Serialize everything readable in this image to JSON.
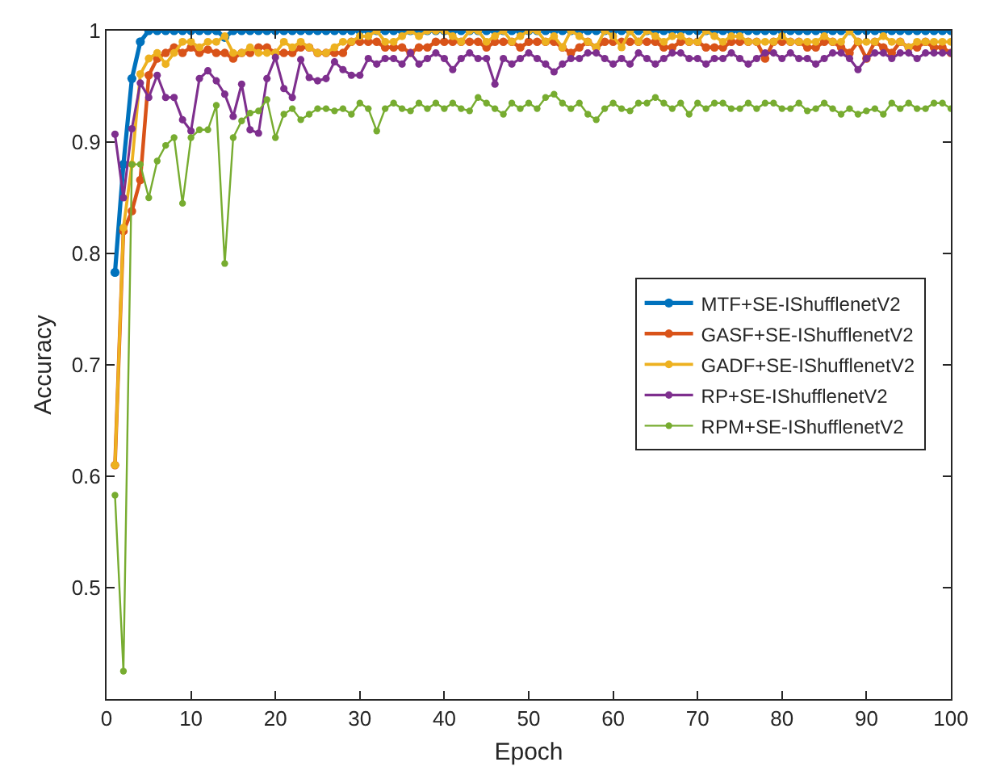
{
  "chart_data": {
    "type": "line",
    "xlabel": "Epoch",
    "ylabel": "Accuracy",
    "xlim": [
      0,
      100
    ],
    "xticks": [
      0,
      10,
      20,
      30,
      40,
      50,
      60,
      70,
      80,
      90,
      100
    ],
    "ylim": [
      0.4,
      1
    ],
    "yticks": [
      0.5,
      0.6,
      0.7,
      0.8,
      0.9,
      1
    ],
    "grid": false,
    "legend": "right",
    "marker": "circle",
    "line_style": "solid",
    "x": [
      1,
      2,
      3,
      4,
      5,
      6,
      7,
      8,
      9,
      10,
      11,
      12,
      13,
      14,
      15,
      16,
      17,
      18,
      19,
      20,
      21,
      22,
      23,
      24,
      25,
      26,
      27,
      28,
      29,
      30,
      31,
      32,
      33,
      34,
      35,
      36,
      37,
      38,
      39,
      40,
      41,
      42,
      43,
      44,
      45,
      46,
      47,
      48,
      49,
      50,
      51,
      52,
      53,
      54,
      55,
      56,
      57,
      58,
      59,
      60,
      61,
      62,
      63,
      64,
      65,
      66,
      67,
      68,
      69,
      70,
      71,
      72,
      73,
      74,
      75,
      76,
      77,
      78,
      79,
      80,
      81,
      82,
      83,
      84,
      85,
      86,
      87,
      88,
      89,
      90,
      91,
      92,
      93,
      94,
      95,
      96,
      97,
      98,
      99,
      100
    ],
    "series": [
      {
        "name": "MTF+SE-IShufflenetV2",
        "color": "#0072bd",
        "values": [
          0.783,
          0.88,
          0.957,
          0.99,
          1,
          1,
          1,
          1,
          1,
          1,
          1,
          1,
          1,
          0.994,
          1,
          1,
          1,
          1,
          1,
          1,
          1,
          1,
          1,
          1,
          1,
          1,
          1,
          1,
          1,
          1,
          1,
          1,
          1,
          1,
          1,
          1,
          1,
          1,
          1,
          1,
          1,
          1,
          1,
          1,
          1,
          1,
          1,
          1,
          1,
          1,
          1,
          1,
          1,
          1,
          1,
          1,
          1,
          1,
          1,
          1,
          1,
          1,
          1,
          1,
          1,
          1,
          1,
          1,
          1,
          1,
          1,
          1,
          1,
          1,
          1,
          1,
          1,
          1,
          1,
          1,
          1,
          1,
          1,
          1,
          1,
          1,
          1,
          1,
          1,
          1,
          1,
          1,
          1,
          1,
          1,
          1,
          1,
          1,
          1,
          1
        ]
      },
      {
        "name": "GASF+SE-IShufflenetV2",
        "color": "#d95319",
        "values": [
          0.61,
          0.82,
          0.838,
          0.866,
          0.96,
          0.975,
          0.98,
          0.985,
          0.98,
          0.985,
          0.98,
          0.983,
          0.98,
          0.98,
          0.975,
          0.98,
          0.98,
          0.985,
          0.985,
          0.98,
          0.98,
          0.98,
          0.985,
          0.985,
          0.98,
          0.98,
          0.98,
          0.98,
          0.99,
          0.99,
          0.99,
          0.99,
          0.985,
          0.985,
          0.985,
          0.98,
          0.985,
          0.985,
          0.99,
          0.99,
          0.99,
          0.99,
          0.99,
          0.99,
          0.985,
          0.99,
          0.99,
          0.99,
          0.985,
          0.99,
          0.99,
          0.99,
          0.99,
          0.985,
          0.98,
          0.985,
          0.99,
          0.985,
          0.99,
          0.99,
          0.99,
          0.99,
          0.99,
          0.99,
          0.99,
          0.985,
          0.985,
          0.99,
          0.99,
          0.99,
          0.985,
          0.985,
          0.985,
          0.99,
          0.99,
          0.99,
          0.99,
          0.975,
          0.99,
          0.99,
          0.99,
          0.99,
          0.985,
          0.985,
          0.99,
          0.99,
          0.985,
          0.98,
          0.99,
          0.975,
          0.99,
          0.985,
          0.98,
          0.99,
          0.985,
          0.985,
          0.99,
          0.985,
          0.985,
          0.98
        ]
      },
      {
        "name": "GADF+SE-IShufflenetV2",
        "color": "#edb120",
        "values": [
          0.61,
          0.823,
          0.88,
          0.961,
          0.975,
          0.98,
          0.97,
          0.98,
          0.99,
          0.99,
          0.985,
          0.99,
          0.99,
          0.995,
          0.98,
          0.98,
          0.985,
          0.98,
          0.98,
          0.98,
          0.99,
          0.985,
          0.99,
          0.985,
          0.98,
          0.98,
          0.985,
          0.99,
          0.99,
          0.995,
          0.995,
          1,
          0.99,
          0.99,
          0.995,
          1,
          0.995,
          1,
          1,
          1,
          0.995,
          0.99,
          1,
          1,
          0.99,
          0.995,
          1,
          0.99,
          0.995,
          1,
          1,
          0.99,
          0.995,
          0.985,
          1,
          0.995,
          0.99,
          0.985,
          1,
          0.995,
          0.985,
          1,
          0.99,
          1,
          0.995,
          0.99,
          0.995,
          0.995,
          0.99,
          0.99,
          1,
          0.995,
          0.99,
          0.995,
          0.995,
          0.99,
          0.99,
          0.99,
          0.99,
          0.995,
          0.99,
          0.99,
          0.99,
          0.99,
          0.995,
          0.99,
          0.99,
          1,
          0.99,
          0.99,
          0.99,
          0.995,
          0.99,
          0.99,
          0.985,
          0.99,
          0.99,
          0.99,
          0.99,
          0.99
        ]
      },
      {
        "name": "RP+SE-IShufflenetV2",
        "color": "#7e2f8e",
        "values": [
          0.907,
          0.85,
          0.912,
          0.953,
          0.94,
          0.96,
          0.94,
          0.94,
          0.92,
          0.91,
          0.957,
          0.964,
          0.955,
          0.943,
          0.923,
          0.952,
          0.911,
          0.908,
          0.957,
          0.976,
          0.948,
          0.94,
          0.974,
          0.958,
          0.955,
          0.957,
          0.972,
          0.965,
          0.96,
          0.96,
          0.975,
          0.97,
          0.975,
          0.975,
          0.97,
          0.98,
          0.97,
          0.975,
          0.98,
          0.975,
          0.965,
          0.975,
          0.98,
          0.975,
          0.975,
          0.952,
          0.975,
          0.97,
          0.975,
          0.98,
          0.975,
          0.97,
          0.963,
          0.97,
          0.975,
          0.975,
          0.98,
          0.98,
          0.975,
          0.97,
          0.975,
          0.97,
          0.98,
          0.975,
          0.97,
          0.975,
          0.98,
          0.98,
          0.975,
          0.975,
          0.97,
          0.975,
          0.975,
          0.98,
          0.975,
          0.97,
          0.975,
          0.98,
          0.98,
          0.975,
          0.98,
          0.975,
          0.975,
          0.97,
          0.975,
          0.98,
          0.98,
          0.975,
          0.965,
          0.975,
          0.98,
          0.98,
          0.975,
          0.98,
          0.98,
          0.975,
          0.98,
          0.98,
          0.98,
          0.98
        ]
      },
      {
        "name": "RPM+SE-IShufflenetV2",
        "color": "#77ac30",
        "values": [
          0.583,
          0.425,
          0.88,
          0.88,
          0.85,
          0.883,
          0.897,
          0.904,
          0.845,
          0.904,
          0.911,
          0.911,
          0.933,
          0.791,
          0.904,
          0.919,
          0.926,
          0.928,
          0.938,
          0.904,
          0.925,
          0.93,
          0.92,
          0.925,
          0.93,
          0.93,
          0.928,
          0.93,
          0.925,
          0.935,
          0.93,
          0.91,
          0.93,
          0.935,
          0.93,
          0.928,
          0.935,
          0.93,
          0.935,
          0.93,
          0.935,
          0.93,
          0.928,
          0.94,
          0.935,
          0.93,
          0.925,
          0.935,
          0.93,
          0.935,
          0.93,
          0.94,
          0.943,
          0.935,
          0.93,
          0.935,
          0.925,
          0.92,
          0.93,
          0.935,
          0.93,
          0.928,
          0.935,
          0.935,
          0.94,
          0.935,
          0.93,
          0.935,
          0.925,
          0.935,
          0.93,
          0.935,
          0.935,
          0.93,
          0.93,
          0.935,
          0.93,
          0.935,
          0.935,
          0.93,
          0.93,
          0.935,
          0.928,
          0.93,
          0.935,
          0.93,
          0.925,
          0.93,
          0.925,
          0.928,
          0.93,
          0.925,
          0.935,
          0.93,
          0.935,
          0.93,
          0.93,
          0.935,
          0.935,
          0.93
        ]
      }
    ]
  }
}
